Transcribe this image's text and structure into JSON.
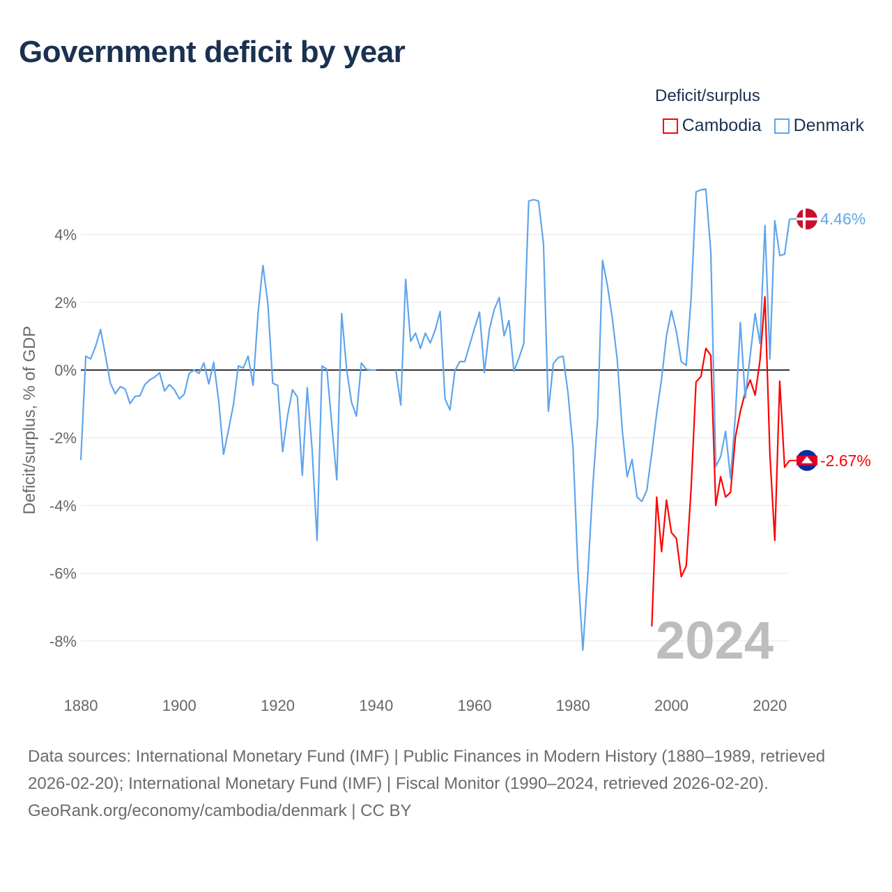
{
  "title": "Government deficit by year",
  "legend": {
    "title": "Deficit/surplus",
    "items": [
      {
        "name": "Cambodia",
        "color": "#ff0000"
      },
      {
        "name": "Denmark",
        "color": "#5fa5ec"
      }
    ]
  },
  "watermark_year": "2024",
  "footer": {
    "sources": "Data sources: International Monetary Fund (IMF) | Public Finances in Modern History (1880–1989, retrieved 2026-02-20); International Monetary Fund (IMF) | Fiscal Monitor (1990–2024, retrieved 2026-02-20).",
    "credit": "GeoRank.org/economy/cambodia/denmark | CC BY"
  },
  "chart_data": {
    "type": "line",
    "title": "Government deficit by year",
    "xlabel": "",
    "ylabel": "Deficit/surplus, % of GDP",
    "xlim": [
      1880,
      2024
    ],
    "ylim": [
      -9,
      5.5
    ],
    "x_ticks": [
      1880,
      1900,
      1920,
      1940,
      1960,
      1980,
      2000,
      2020
    ],
    "x_tick_labels": [
      "1880",
      "1900",
      "1920",
      "1940",
      "1960",
      "1980",
      "2000",
      "2020"
    ],
    "y_ticks": [
      4,
      2,
      0,
      -2,
      -4,
      -6,
      -8
    ],
    "y_tick_labels": [
      "4%",
      "2%",
      "0%",
      "-2%",
      "-4%",
      "-6%",
      "-8%"
    ],
    "grid": true,
    "legend_position": "top-right",
    "series": [
      {
        "name": "Denmark",
        "color": "#5fa5ec",
        "end_label": "4.46%",
        "start_year": 1880,
        "values": [
          -2.66,
          0.41,
          0.33,
          0.7,
          1.2,
          0.43,
          -0.39,
          -0.7,
          -0.49,
          -0.56,
          -0.99,
          -0.78,
          -0.76,
          -0.43,
          -0.29,
          -0.21,
          -0.08,
          -0.62,
          -0.43,
          -0.58,
          -0.85,
          -0.72,
          -0.1,
          0.0,
          -0.1,
          0.21,
          -0.41,
          0.23,
          -0.91,
          -2.49,
          -1.77,
          -1.03,
          0.12,
          0.06,
          0.41,
          -0.45,
          1.67,
          3.09,
          1.96,
          -0.39,
          -0.45,
          -2.41,
          -1.36,
          -0.58,
          -0.8,
          -3.11,
          -0.52,
          -2.35,
          -5.03,
          0.12,
          0.02,
          -1.63,
          -3.24,
          1.67,
          0.02,
          -0.95,
          -1.36,
          0.21,
          0.02,
          0.0,
          0.0,
          null,
          null,
          null,
          0.0,
          -1.03,
          2.68,
          0.85,
          1.09,
          0.64,
          1.09,
          0.8,
          1.18,
          1.73,
          -0.85,
          -1.18,
          -0.02,
          0.25,
          0.25,
          0.74,
          1.24,
          1.71,
          -0.08,
          1.2,
          1.79,
          2.14,
          1.01,
          1.46,
          -0.04,
          0.35,
          0.78,
          4.99,
          5.03,
          4.99,
          3.73,
          -1.22,
          0.19,
          0.37,
          0.41,
          -0.7,
          -2.31,
          -5.9,
          -8.27,
          -6.08,
          -3.48,
          -1.42,
          3.24,
          2.49,
          1.51,
          0.29,
          -1.77,
          -3.15,
          -2.64,
          -3.75,
          -3.88,
          -3.55,
          -2.45,
          -1.28,
          -0.25,
          1.01,
          1.75,
          1.13,
          0.25,
          0.14,
          2.14,
          5.26,
          5.32,
          5.34,
          3.48,
          -2.85,
          -2.56,
          -1.81,
          -3.2,
          -1.34,
          1.4,
          -0.82,
          0.43,
          1.67,
          0.78,
          4.27,
          0.33,
          4.41,
          3.38,
          3.42,
          4.46
        ]
      },
      {
        "name": "Cambodia",
        "color": "#ff0000",
        "end_label": "-2.67%",
        "start_year": 1996,
        "values": [
          -7.57,
          -3.75,
          -5.36,
          -3.84,
          -4.8,
          -4.97,
          -6.1,
          -5.79,
          -3.48,
          -0.35,
          -0.19,
          0.64,
          0.43,
          -4.0,
          -3.15,
          -3.75,
          -3.61,
          -1.98,
          -1.22,
          -0.66,
          -0.29,
          -0.74,
          0.29,
          2.16,
          -2.49,
          -5.03,
          -0.33,
          -2.87,
          -2.67
        ]
      }
    ]
  }
}
